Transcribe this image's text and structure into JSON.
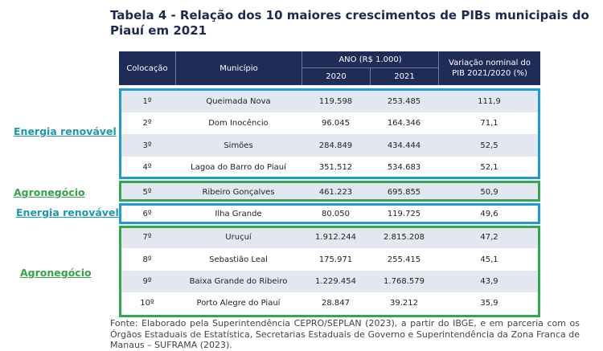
{
  "title": "Tabela 4 - Relação dos 10 maiores crescimentos de PIBs municipais do Piauí em 2021",
  "table": {
    "header": {
      "rank": "Colocação",
      "municipality": "Município",
      "year_group": "ANO (R$ 1.000)",
      "year1": "2020",
      "year2": "2021",
      "variation": "Variação nominal do PIB 2021/2020 (%)"
    },
    "rows": [
      [
        "1º",
        "Queimada Nova",
        "119.598",
        "253.485",
        "111,9"
      ],
      [
        "2º",
        "Dom Inocêncio",
        "96.045",
        "164.346",
        "71,1"
      ],
      [
        "3º",
        "Simões",
        "284.849",
        "434.444",
        "52,5"
      ],
      [
        "4º",
        "Lagoa do Barro do Piauí",
        "351.512",
        "534.683",
        "52,1"
      ],
      [
        "5º",
        "Ribeiro Gonçalves",
        "461.223",
        "695.855",
        "50,9"
      ],
      [
        "6º",
        "Ilha Grande",
        "80.050",
        "119.725",
        "49,6"
      ],
      [
        "7º",
        "Uruçuí",
        "1.912.244",
        "2.815.208",
        "47,2"
      ],
      [
        "8º",
        "Sebastião Leal",
        "175.971",
        "255.415",
        "45,1"
      ],
      [
        "9º",
        "Baixa Grande do Ribeiro",
        "1.229.454",
        "1.768.579",
        "43,9"
      ],
      [
        "10º",
        "Porto Alegre do Piauí",
        "28.847",
        "39.212",
        "35,9"
      ]
    ]
  },
  "annotations": [
    "Energia renovável",
    "Agronegócio",
    "Energia renovável",
    "Agronegócio"
  ],
  "source": "Fonte: Elaborado pela Superintendência CEPRO/SEPLAN (2023), a partir do IBGE, e em parceria com os Órgãos Estaduais de Estatística, Secretarias Estaduais de Governo e Superintendência da Zona Franca de Manaus – SUFRAMA (2023)."
}
